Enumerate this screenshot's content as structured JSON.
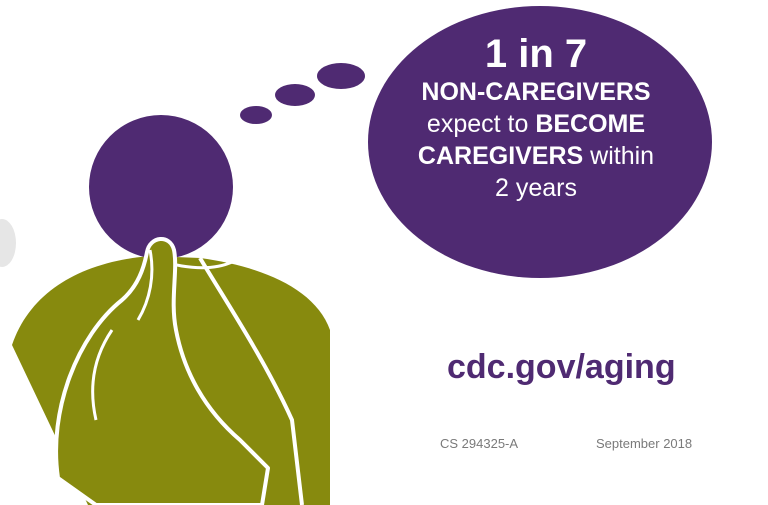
{
  "colors": {
    "purple": "#4f2a72",
    "olive": "#878a0e",
    "light_gray": "#e6e6e6",
    "footer_gray": "#7a7a7a"
  },
  "bubble": {
    "stat": "1 in 7",
    "line1": "NON-CAREGIVERS",
    "line2_pre": "expect to ",
    "line2_bold": "BECOME",
    "line3_bold": "CAREGIVERS",
    "line3_post": " within",
    "line4": "2 years"
  },
  "website": "cdc.gov/aging",
  "footer": {
    "code": "CS 294325-A",
    "date": "September 2018"
  },
  "figure": {
    "icon": "thinking-person-icon"
  }
}
